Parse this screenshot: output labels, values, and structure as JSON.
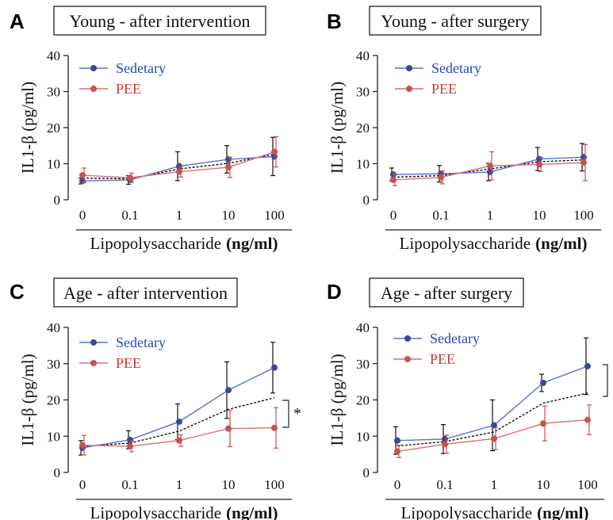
{
  "chart_data": [
    {
      "panel": "A",
      "type": "line",
      "title": "Young - after intervention",
      "xlabel": "Lipopolysaccharide",
      "xlabel_unit": "(ng/ml)",
      "ylabel": "IL1-β (pg/ml)",
      "categories": [
        "0",
        "0.1",
        "1",
        "10",
        "100"
      ],
      "ylim": [
        0,
        40
      ],
      "yticks": [
        0,
        10,
        20,
        30,
        40
      ],
      "legend_position": "top-left",
      "series": [
        {
          "name": "Sedetary",
          "values": [
            5.2,
            5.5,
            9.3,
            11.2,
            12.0
          ],
          "errors": [
            0.8,
            1.2,
            4.0,
            3.8,
            5.3
          ],
          "color": "#3b4a8e",
          "line_color": "#5b6fcf"
        },
        {
          "name": "PEE",
          "values": [
            6.8,
            6.1,
            7.8,
            9.0,
            13.3
          ],
          "errors": [
            2.0,
            1.3,
            1.5,
            2.8,
            4.2
          ],
          "color": "#c85151",
          "line_color": "#d87070"
        }
      ],
      "significance": []
    },
    {
      "panel": "B",
      "type": "line",
      "title": "Young - after surgery",
      "xlabel": "Lipopolysaccharide",
      "xlabel_unit": "(ng/ml)",
      "ylabel": "IL1-β (pg/ml)",
      "categories": [
        "0",
        "0.1",
        "1",
        "10",
        "100"
      ],
      "ylim": [
        0,
        40
      ],
      "yticks": [
        0,
        10,
        20,
        30,
        40
      ],
      "legend_position": "top-left",
      "series": [
        {
          "name": "Sedetary",
          "values": [
            7.0,
            7.2,
            7.7,
            11.3,
            11.8
          ],
          "errors": [
            1.8,
            2.3,
            2.4,
            3.2,
            3.8
          ],
          "color": "#3b4a8e",
          "line_color": "#5b6fcf"
        },
        {
          "name": "PEE",
          "values": [
            5.5,
            6.2,
            9.4,
            9.8,
            10.3
          ],
          "errors": [
            1.6,
            1.8,
            3.9,
            2.0,
            5.0
          ],
          "color": "#c85151",
          "line_color": "#d87070"
        }
      ],
      "significance": []
    },
    {
      "panel": "C",
      "type": "line",
      "title": "Age - after intervention",
      "xlabel": "Lipopolysaccharide",
      "xlabel_unit": "(ng/ml)",
      "ylabel": "IL1-β (pg/ml)",
      "categories": [
        "0",
        "0.1",
        "1",
        "10",
        "100"
      ],
      "ylim": [
        0,
        40
      ],
      "yticks": [
        0,
        10,
        20,
        30,
        40
      ],
      "legend_position": "top-left",
      "series": [
        {
          "name": "Sedetary",
          "values": [
            6.8,
            9.0,
            14.0,
            22.7,
            28.9
          ],
          "errors": [
            2.0,
            2.5,
            4.9,
            7.8,
            7.0
          ],
          "color": "#3b4a8e",
          "line_color": "#5b6fcf"
        },
        {
          "name": "PEE",
          "values": [
            7.5,
            7.2,
            8.8,
            12.1,
            12.3
          ],
          "errors": [
            2.7,
            1.5,
            1.6,
            5.0,
            5.6
          ],
          "color": "#c85151",
          "line_color": "#d87070"
        }
      ],
      "significance": [
        "*"
      ]
    },
    {
      "panel": "D",
      "type": "line",
      "title": "Age - after surgery",
      "xlabel": "Lipopolysaccharide",
      "xlabel_unit": "(ng/ml)",
      "ylabel": "IL1-β (pg/ml)",
      "categories": [
        "0",
        "0.1",
        "1",
        "10",
        "100"
      ],
      "ylim": [
        0,
        40
      ],
      "yticks": [
        0,
        10,
        20,
        30,
        40
      ],
      "legend_position": "top-left",
      "series": [
        {
          "name": "Sedetary",
          "values": [
            8.8,
            9.2,
            13.0,
            24.7,
            29.3
          ],
          "errors": [
            3.8,
            4.0,
            7.0,
            2.4,
            7.8
          ],
          "color": "#3b4a8e",
          "line_color": "#5b6fcf"
        },
        {
          "name": "PEE",
          "values": [
            5.8,
            7.8,
            9.3,
            13.5,
            14.5
          ],
          "errors": [
            1.7,
            2.5,
            3.0,
            4.8,
            4.1
          ],
          "color": "#c85151",
          "line_color": "#d87070"
        }
      ],
      "significance": []
    }
  ]
}
